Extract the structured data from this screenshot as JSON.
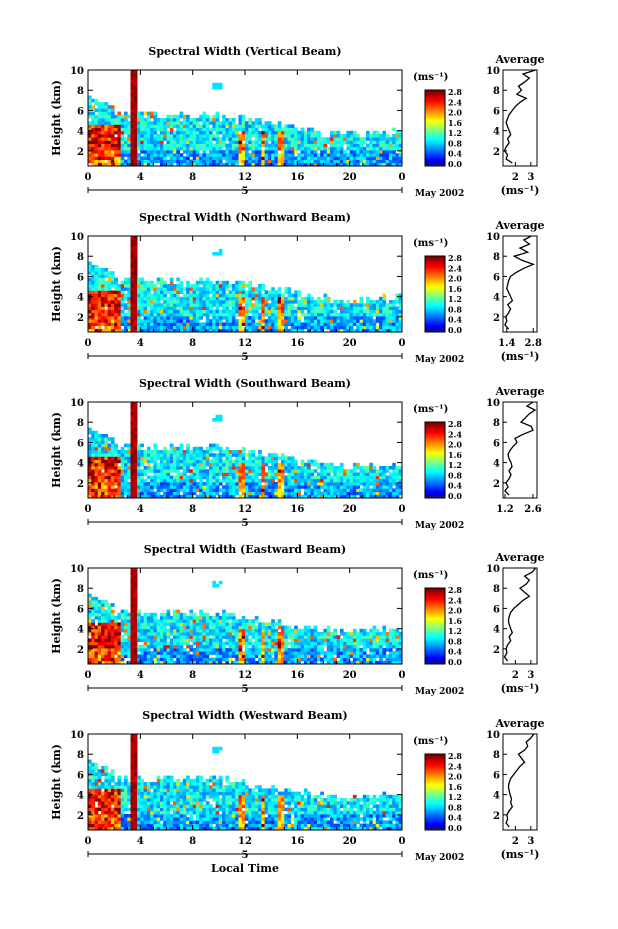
{
  "chart_data": [
    {
      "type": "heatmap",
      "title": "Spectral Width (Vertical Beam)",
      "ylabel": "Height (km)",
      "ylim": [
        0.5,
        10
      ],
      "yticks": [
        "2",
        "4",
        "6",
        "8",
        "10"
      ],
      "xlim": [
        0,
        24
      ],
      "xticks": [
        "0",
        "4",
        "8",
        "12",
        "16",
        "20",
        "0"
      ],
      "date_label": "5",
      "month_label": "May 2002",
      "colorbar": {
        "unit": "(ms⁻¹)",
        "ticks": [
          "0.0",
          "0.4",
          "0.8",
          "1.2",
          "1.6",
          "2.0",
          "2.4",
          "2.8"
        ]
      },
      "average_profile": {
        "title": "Average",
        "xlabel": "(ms⁻¹)",
        "xticks": [
          "2",
          "3"
        ],
        "xlim": [
          1.2,
          3.4
        ],
        "yticks": [
          "2",
          "4",
          "6",
          "8",
          "10"
        ],
        "height_km": [
          0.8,
          1.2,
          1.6,
          2.0,
          2.4,
          2.8,
          3.2,
          3.6,
          4.0,
          4.4,
          4.8,
          5.2,
          5.6,
          6.0,
          6.4,
          6.8,
          7.2,
          7.6,
          8.0,
          8.4,
          8.8,
          9.2,
          9.6,
          10.0
        ],
        "width_ms": [
          1.8,
          1.4,
          1.5,
          1.3,
          1.4,
          1.6,
          1.5,
          1.7,
          1.6,
          1.5,
          1.4,
          1.5,
          1.6,
          1.8,
          2.0,
          2.3,
          2.7,
          2.1,
          2.4,
          2.2,
          2.6,
          2.9,
          2.5,
          3.3
        ]
      }
    },
    {
      "type": "heatmap",
      "title": "Spectral Width (Northward Beam)",
      "ylabel": "Height (km)",
      "ylim": [
        0.5,
        10
      ],
      "yticks": [
        "2",
        "4",
        "6",
        "8",
        "10"
      ],
      "xlim": [
        0,
        24
      ],
      "xticks": [
        "0",
        "4",
        "8",
        "12",
        "16",
        "20",
        "0"
      ],
      "date_label": "5",
      "month_label": "May 2002",
      "colorbar": {
        "unit": "(ms⁻¹)",
        "ticks": [
          "0.0",
          "0.4",
          "0.8",
          "1.2",
          "1.6",
          "2.0",
          "2.4",
          "2.8"
        ]
      },
      "average_profile": {
        "title": "Average",
        "xlabel": "(ms⁻¹)",
        "xticks": [
          "1.4",
          "2.8"
        ],
        "xlim": [
          1.2,
          3.0
        ],
        "yticks": [
          "2",
          "4",
          "6",
          "8",
          "10"
        ],
        "height_km": [
          0.8,
          1.2,
          1.6,
          2.0,
          2.4,
          2.8,
          3.2,
          3.6,
          4.0,
          4.4,
          4.8,
          5.2,
          5.6,
          6.0,
          6.4,
          6.8,
          7.2,
          7.6,
          8.0,
          8.4,
          8.8,
          9.2,
          9.6,
          10.0
        ],
        "width_ms": [
          1.5,
          1.3,
          1.4,
          1.35,
          1.5,
          1.6,
          1.45,
          1.7,
          1.6,
          1.5,
          1.4,
          1.45,
          1.5,
          1.6,
          1.9,
          2.3,
          2.8,
          2.2,
          1.8,
          2.5,
          2.1,
          2.6,
          2.3,
          2.7
        ]
      }
    },
    {
      "type": "heatmap",
      "title": "Spectral Width (Southward Beam)",
      "ylabel": "Height (km)",
      "ylim": [
        0.5,
        10
      ],
      "yticks": [
        "2",
        "4",
        "6",
        "8",
        "10"
      ],
      "xlim": [
        0,
        24
      ],
      "xticks": [
        "0",
        "4",
        "8",
        "12",
        "16",
        "20",
        "0"
      ],
      "date_label": "5",
      "month_label": "May 2002",
      "colorbar": {
        "unit": "(ms⁻¹)",
        "ticks": [
          "0.0",
          "0.4",
          "0.8",
          "1.2",
          "1.6",
          "2.0",
          "2.4",
          "2.8"
        ]
      },
      "average_profile": {
        "title": "Average",
        "xlabel": "",
        "xticks": [
          "1.2",
          "2.6"
        ],
        "xlim": [
          1.1,
          2.8
        ],
        "yticks": [
          "2",
          "4",
          "6",
          "8",
          "10"
        ],
        "height_km": [
          0.8,
          1.2,
          1.6,
          2.0,
          2.4,
          2.8,
          3.2,
          3.6,
          4.0,
          4.4,
          4.8,
          5.2,
          5.6,
          6.0,
          6.4,
          6.8,
          7.2,
          7.6,
          8.0,
          8.4,
          8.8,
          9.2,
          9.6,
          10.0
        ],
        "width_ms": [
          1.4,
          1.2,
          1.35,
          1.25,
          1.4,
          1.5,
          1.4,
          1.55,
          1.5,
          1.4,
          1.35,
          1.45,
          1.6,
          1.8,
          1.7,
          2.1,
          2.6,
          2.5,
          2.0,
          2.2,
          2.4,
          2.7,
          2.3,
          2.6
        ]
      }
    },
    {
      "type": "heatmap",
      "title": "Spectral Width (Eastward Beam)",
      "ylabel": "Height (km)",
      "ylim": [
        0.5,
        10
      ],
      "yticks": [
        "2",
        "4",
        "6",
        "8",
        "10"
      ],
      "xlim": [
        0,
        24
      ],
      "xticks": [
        "0",
        "4",
        "8",
        "12",
        "16",
        "20",
        "0"
      ],
      "date_label": "5",
      "month_label": "May 2002",
      "colorbar": {
        "unit": "(ms⁻¹)",
        "ticks": [
          "0.0",
          "0.4",
          "0.8",
          "1.2",
          "1.6",
          "2.0",
          "2.4",
          "2.8"
        ]
      },
      "average_profile": {
        "title": "Average",
        "xlabel": "(ms⁻¹)",
        "xticks": [
          "2",
          "3"
        ],
        "xlim": [
          1.2,
          3.4
        ],
        "yticks": [
          "2",
          "4",
          "6",
          "8",
          "10"
        ],
        "height_km": [
          0.8,
          1.2,
          1.6,
          2.0,
          2.4,
          2.8,
          3.2,
          3.6,
          4.0,
          4.4,
          4.8,
          5.2,
          5.6,
          6.0,
          6.4,
          6.8,
          7.2,
          7.6,
          8.0,
          8.4,
          8.8,
          9.2,
          9.6,
          10.0
        ],
        "width_ms": [
          1.5,
          1.3,
          1.45,
          1.4,
          1.5,
          1.7,
          1.6,
          1.8,
          1.7,
          1.6,
          1.55,
          1.6,
          1.7,
          1.9,
          2.2,
          2.5,
          2.9,
          2.6,
          2.3,
          2.7,
          2.9,
          2.6,
          3.1,
          3.3
        ]
      }
    },
    {
      "type": "heatmap",
      "title": "Spectral Width (Westward Beam)",
      "ylabel": "Height (km)",
      "xlabel": "Local Time",
      "ylim": [
        0.5,
        10
      ],
      "yticks": [
        "2",
        "4",
        "6",
        "8",
        "10"
      ],
      "xlim": [
        0,
        24
      ],
      "xticks": [
        "0",
        "4",
        "8",
        "12",
        "16",
        "20",
        "0"
      ],
      "date_label": "5",
      "month_label": "May 2002",
      "colorbar": {
        "unit": "(ms⁻¹)",
        "ticks": [
          "0.0",
          "0.4",
          "0.8",
          "1.2",
          "1.6",
          "2.0",
          "2.4",
          "2.8"
        ]
      },
      "average_profile": {
        "title": "Average",
        "xlabel": "(ms⁻¹)",
        "xticks": [
          "2",
          "3"
        ],
        "xlim": [
          1.2,
          3.4
        ],
        "yticks": [
          "2",
          "4",
          "6",
          "8",
          "10"
        ],
        "height_km": [
          0.8,
          1.2,
          1.6,
          2.0,
          2.4,
          2.8,
          3.2,
          3.6,
          4.0,
          4.4,
          4.8,
          5.2,
          5.6,
          6.0,
          6.4,
          6.8,
          7.2,
          7.6,
          8.0,
          8.4,
          8.8,
          9.2,
          9.6,
          10.0
        ],
        "width_ms": [
          1.6,
          1.4,
          1.5,
          1.45,
          1.6,
          1.8,
          1.7,
          1.75,
          1.65,
          1.6,
          1.55,
          1.6,
          1.7,
          1.9,
          2.1,
          2.3,
          2.6,
          2.4,
          2.2,
          2.6,
          2.8,
          2.7,
          3.0,
          3.2
        ]
      }
    }
  ]
}
